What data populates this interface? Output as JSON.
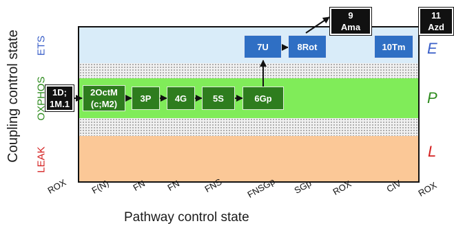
{
  "axis": {
    "y_title": "Coupling control state",
    "x_title": "Pathway control state"
  },
  "bands": {
    "ets": {
      "label": "ETS",
      "letter": "E",
      "color": "#3a5fc8"
    },
    "oxphos": {
      "label": "OXPHOS",
      "letter": "P",
      "color": "#2e8b1e"
    },
    "leak": {
      "label": "LEAK",
      "letter": "L",
      "color": "#d42020"
    }
  },
  "boxes": {
    "b1": "1D;\n1M.1",
    "b2": "2OctM\n(c;M2)",
    "b3": "3P",
    "b4": "4G",
    "b5": "5S",
    "b6": "6Gp",
    "b7": "7U",
    "b8": "8Rot",
    "b9": "9\nAma",
    "b10": "10Tm",
    "b11": "11\nAzd"
  },
  "x_ticks": [
    "ROX",
    "F(N)",
    "FN",
    "FN",
    "FNS",
    "FNSGp",
    "SGp",
    "ROX",
    "CIV",
    "ROX"
  ]
}
